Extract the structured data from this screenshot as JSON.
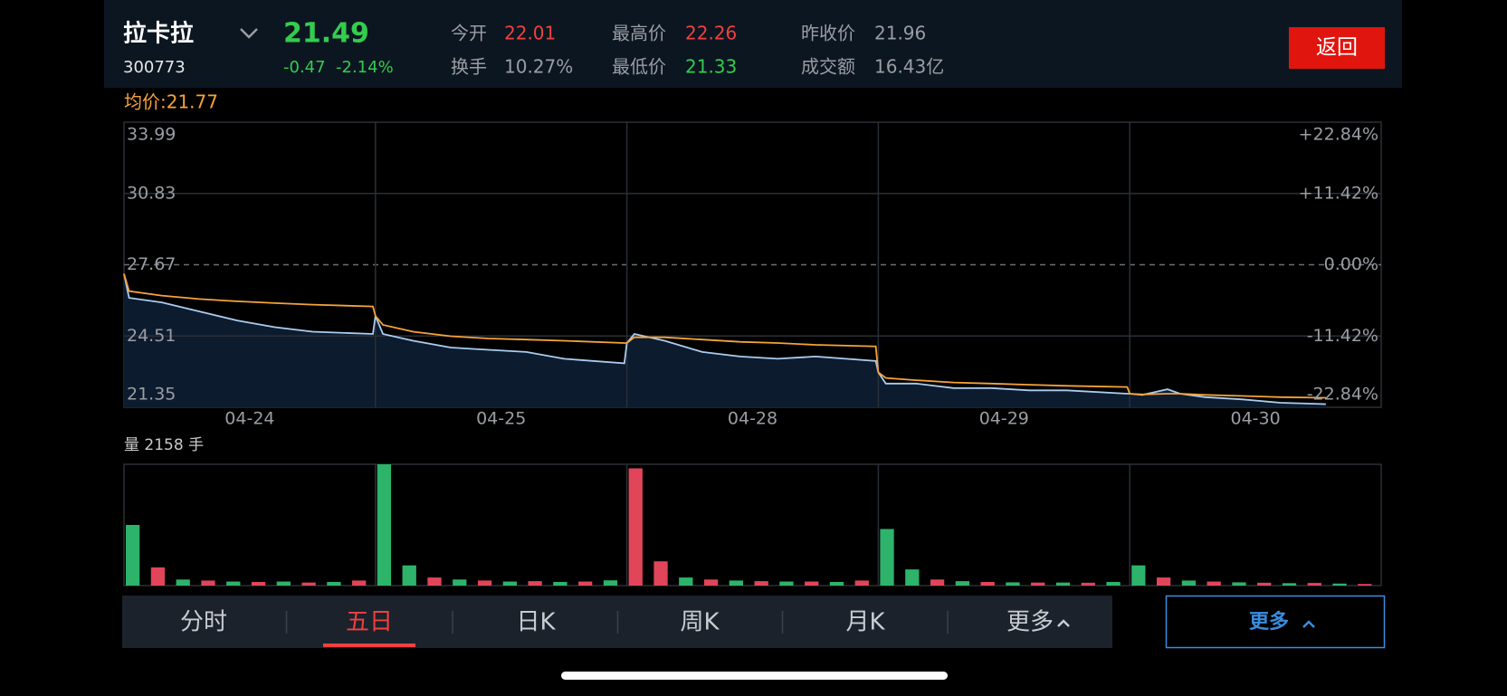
{
  "header": {
    "name": "拉卡拉",
    "code": "300773",
    "price": "21.49",
    "change": "-0.47  -2.14%",
    "stats": [
      {
        "label": "今开",
        "value": "22.01",
        "color": "#f0413e"
      },
      {
        "label": "换手",
        "value": "10.27%",
        "color": "#9a9da3"
      },
      {
        "label": "最高价",
        "value": "22.26",
        "color": "#f0413e"
      },
      {
        "label": "最低价",
        "value": "21.33",
        "color": "#33cc4f"
      },
      {
        "label": "昨收价",
        "value": "21.96",
        "color": "#9a9da3"
      },
      {
        "label": "成交额",
        "value": "16.43亿",
        "color": "#9a9da3"
      }
    ],
    "back_button": "返回"
  },
  "chart_data": [
    {
      "type": "line",
      "annotation": "均价:21.77",
      "xlim": [
        0,
        5
      ],
      "xticks": [
        {
          "value": 0.5,
          "label": "04-24"
        },
        {
          "value": 1.5,
          "label": "04-25"
        },
        {
          "value": 2.5,
          "label": "04-28"
        },
        {
          "value": 3.5,
          "label": "04-29"
        },
        {
          "value": 4.5,
          "label": "04-30"
        }
      ],
      "xgrid": [
        1,
        2,
        3,
        4
      ],
      "ylim": [
        21.35,
        33.99
      ],
      "yticks": [
        33.99,
        30.83,
        27.67,
        24.51,
        21.35
      ],
      "y2lim": [
        -22.84,
        22.84
      ],
      "y2ticks": [
        {
          "value": 22.84,
          "label": "+22.84%"
        },
        {
          "value": 11.42,
          "label": "+11.42%"
        },
        {
          "value": 0,
          "label": "0.00%"
        },
        {
          "value": -11.42,
          "label": "-11.42%"
        },
        {
          "value": -22.84,
          "label": "-22.84%"
        }
      ],
      "grid": true,
      "series": [
        {
          "color": "#a9cdf0",
          "fill": "#0d1b2e",
          "x": [
            0,
            0.02,
            0.15,
            0.3,
            0.45,
            0.6,
            0.75,
            0.99,
            1.0,
            1.03,
            1.15,
            1.3,
            1.45,
            1.6,
            1.75,
            1.99,
            2.0,
            2.03,
            2.15,
            2.3,
            2.45,
            2.6,
            2.75,
            2.99,
            3.0,
            3.03,
            3.15,
            3.3,
            3.45,
            3.6,
            3.75,
            3.99,
            4.0,
            4.05,
            4.15,
            4.2,
            4.3,
            4.45,
            4.6,
            4.78
          ],
          "values": [
            27.27,
            26.2,
            26.0,
            25.6,
            25.2,
            24.9,
            24.7,
            24.6,
            25.4,
            24.6,
            24.3,
            24.0,
            23.9,
            23.8,
            23.5,
            23.3,
            24.2,
            24.6,
            24.3,
            23.8,
            23.6,
            23.5,
            23.6,
            23.4,
            22.9,
            22.4,
            22.4,
            22.2,
            22.2,
            22.1,
            22.1,
            21.95,
            21.95,
            21.9,
            22.15,
            21.95,
            21.8,
            21.7,
            21.55,
            21.49
          ]
        },
        {
          "color": "#f5a33a",
          "x": [
            0,
            0.02,
            0.15,
            0.3,
            0.45,
            0.6,
            0.75,
            0.99,
            1.0,
            1.03,
            1.15,
            1.3,
            1.45,
            1.6,
            1.75,
            1.99,
            2.0,
            2.03,
            2.15,
            2.3,
            2.45,
            2.6,
            2.75,
            2.99,
            3.0,
            3.03,
            3.15,
            3.3,
            3.45,
            3.6,
            3.75,
            3.99,
            4.0,
            4.05,
            4.15,
            4.2,
            4.3,
            4.45,
            4.6,
            4.78
          ],
          "values": [
            27.27,
            26.5,
            26.3,
            26.15,
            26.05,
            25.97,
            25.9,
            25.82,
            25.4,
            25.0,
            24.7,
            24.5,
            24.4,
            24.35,
            24.3,
            24.2,
            24.2,
            24.45,
            24.45,
            24.35,
            24.25,
            24.2,
            24.12,
            24.05,
            22.9,
            22.65,
            22.55,
            22.45,
            22.4,
            22.35,
            22.3,
            22.25,
            21.95,
            21.92,
            21.95,
            21.95,
            21.9,
            21.85,
            21.8,
            21.77
          ]
        }
      ]
    },
    {
      "type": "bar",
      "title": "量 2158 手",
      "xlim": [
        0,
        5
      ],
      "xgrid": [
        1,
        2,
        3,
        4
      ],
      "ylim": [
        0,
        60000
      ],
      "x": [
        0,
        0.1,
        0.2,
        0.3,
        0.4,
        0.5,
        0.6,
        0.7,
        0.8,
        0.9,
        1,
        1.1,
        1.2,
        1.3,
        1.4,
        1.5,
        1.6,
        1.7,
        1.8,
        1.9,
        2,
        2.1,
        2.2,
        2.3,
        2.4,
        2.5,
        2.6,
        2.7,
        2.8,
        2.9,
        3,
        3.1,
        3.2,
        3.3,
        3.4,
        3.5,
        3.6,
        3.7,
        3.8,
        3.9,
        4,
        4.1,
        4.2,
        4.3,
        4.4,
        4.5,
        4.6,
        4.7,
        4.8,
        4.9
      ],
      "values": [
        30000,
        9000,
        3000,
        2500,
        2000,
        1800,
        2000,
        1500,
        1800,
        2500,
        60000,
        10000,
        4000,
        3000,
        2500,
        2000,
        2200,
        1800,
        2000,
        2600,
        58000,
        12000,
        4000,
        3000,
        2500,
        2200,
        2000,
        2000,
        1800,
        2500,
        28000,
        8000,
        3000,
        2200,
        1800,
        1600,
        1500,
        1500,
        1400,
        1800,
        10000,
        4000,
        2500,
        2000,
        1600,
        1400,
        1200,
        1300,
        1000,
        800
      ],
      "colors": [
        "#2db36a",
        "#e0455a",
        "#2db36a",
        "#e0455a",
        "#2db36a",
        "#e0455a",
        "#2db36a",
        "#e0455a",
        "#2db36a",
        "#e0455a",
        "#2db36a",
        "#2db36a",
        "#e0455a",
        "#2db36a",
        "#e0455a",
        "#2db36a",
        "#e0455a",
        "#2db36a",
        "#e0455a",
        "#2db36a",
        "#e0455a",
        "#e0455a",
        "#2db36a",
        "#e0455a",
        "#2db36a",
        "#e0455a",
        "#2db36a",
        "#e0455a",
        "#2db36a",
        "#e0455a",
        "#2db36a",
        "#2db36a",
        "#e0455a",
        "#2db36a",
        "#e0455a",
        "#2db36a",
        "#e0455a",
        "#2db36a",
        "#e0455a",
        "#2db36a",
        "#2db36a",
        "#e0455a",
        "#2db36a",
        "#e0455a",
        "#2db36a",
        "#e0455a",
        "#2db36a",
        "#e0455a",
        "#2db36a",
        "#e0455a"
      ]
    }
  ],
  "tabs": [
    "分时",
    "五日",
    "日K",
    "周K",
    "月K",
    "更多"
  ],
  "selected_tab": 1,
  "more_button": "更多"
}
